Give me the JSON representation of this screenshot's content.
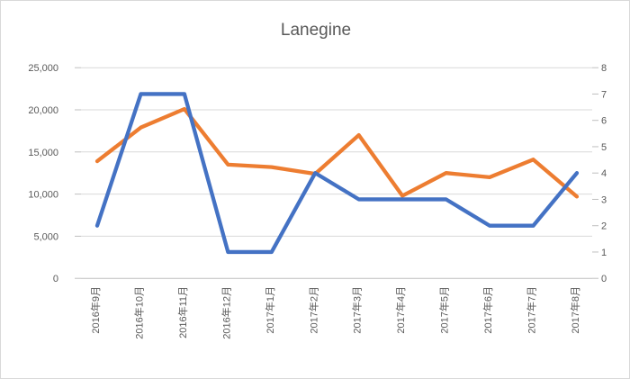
{
  "window": {
    "background": "#FFFFFF",
    "border_color": "#D9D9D9"
  },
  "chart_data": {
    "type": "line",
    "title": "Lanegine",
    "legend": "none",
    "gridlines": "horizontal",
    "categories": [
      "2016年9月",
      "2016年10月",
      "2016年11月",
      "2016年12月",
      "2017年1月",
      "2017年2月",
      "2017年3月",
      "2017年4月",
      "2017年5月",
      "2017年6月",
      "2017年7月",
      "2017年8月"
    ],
    "series": [
      {
        "name": "orange-line",
        "axis": "left",
        "color": "#ED7D31",
        "values": [
          13900,
          17900,
          20100,
          13500,
          13200,
          12400,
          17000,
          9800,
          12500,
          12000,
          14100,
          9700
        ]
      },
      {
        "name": "blue-line",
        "axis": "right",
        "color": "#4472C4",
        "values": [
          2,
          7,
          7,
          1,
          1,
          4,
          3,
          3,
          3,
          2,
          2,
          4
        ]
      }
    ],
    "left_axis": {
      "min": 0,
      "max": 25000,
      "step": 5000,
      "tick_labels": [
        "0",
        "5,000",
        "10,000",
        "15,000",
        "20,000",
        "25,000"
      ]
    },
    "right_axis": {
      "min": 0,
      "max": 8,
      "step": 1,
      "tick_labels": [
        "0",
        "1",
        "2",
        "3",
        "4",
        "5",
        "6",
        "7",
        "8"
      ]
    },
    "text_color": "#595959",
    "gridline_color": "#D9D9D9",
    "axis_color": "#BFBFBF"
  }
}
